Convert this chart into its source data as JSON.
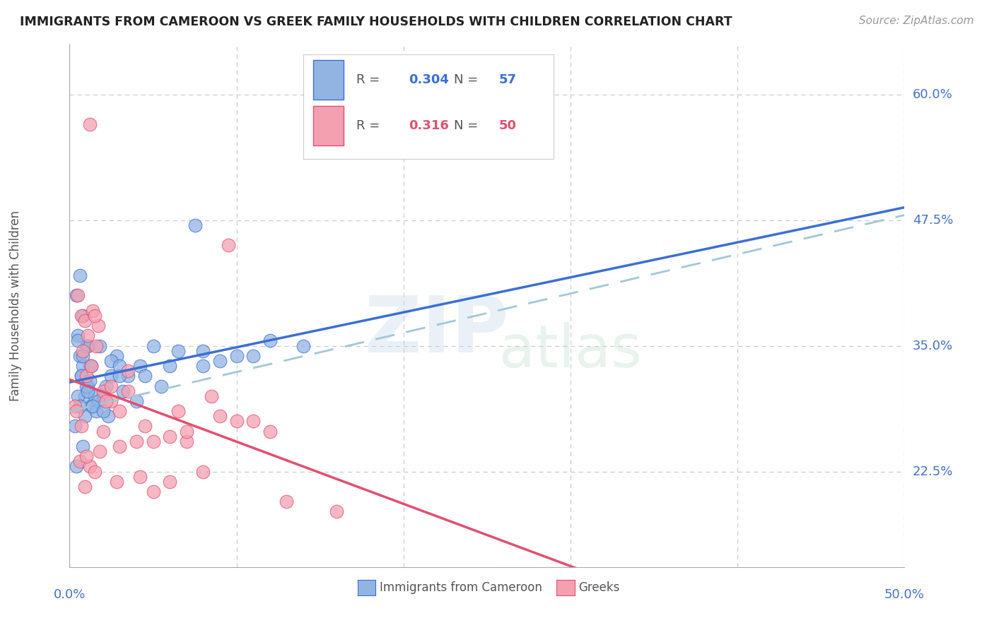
{
  "title": "IMMIGRANTS FROM CAMEROON VS GREEK FAMILY HOUSEHOLDS WITH CHILDREN CORRELATION CHART",
  "source": "Source: ZipAtlas.com",
  "ylabel": "Family Households with Children",
  "xlim": [
    0.0,
    50.0
  ],
  "ylim": [
    13.0,
    65.0
  ],
  "yticks": [
    22.5,
    35.0,
    47.5,
    60.0
  ],
  "xticks": [
    0.0,
    10.0,
    20.0,
    30.0,
    40.0,
    50.0
  ],
  "legend_blue_r": "0.304",
  "legend_blue_n": "57",
  "legend_pink_r": "0.316",
  "legend_pink_n": "50",
  "legend_label_blue": "Immigrants from Cameroon",
  "legend_label_pink": "Greeks",
  "blue_color": "#92b4e3",
  "blue_line_color": "#3b6fd4",
  "blue_dash_color": "#a0c8d8",
  "pink_color": "#f4a0b0",
  "pink_line_color": "#e05070",
  "title_color": "#222222",
  "axis_label_color": "#4472c4",
  "grid_color": "#cccccc",
  "blue_scatter_x": [
    0.6,
    0.8,
    1.0,
    1.2,
    0.5,
    0.7,
    0.9,
    1.1,
    1.3,
    0.4,
    0.6,
    0.8,
    1.0,
    1.5,
    1.8,
    2.2,
    2.5,
    2.8,
    3.5,
    4.2,
    5.0,
    6.5,
    8.0,
    10.0,
    14.0,
    0.3,
    0.5,
    0.7,
    0.9,
    1.1,
    1.3,
    1.6,
    2.0,
    2.5,
    3.0,
    0.4,
    0.6,
    0.8,
    1.2,
    1.7,
    2.3,
    3.2,
    4.5,
    6.0,
    7.5,
    9.0,
    11.0,
    0.5,
    0.8,
    1.1,
    1.4,
    2.0,
    3.0,
    4.0,
    5.5,
    8.0,
    12.0
  ],
  "blue_scatter_y": [
    42.0,
    38.0,
    35.0,
    33.0,
    36.0,
    32.0,
    30.0,
    31.0,
    29.0,
    40.0,
    34.0,
    33.0,
    31.0,
    30.0,
    35.0,
    31.0,
    32.0,
    34.0,
    32.0,
    33.0,
    35.0,
    34.5,
    33.0,
    34.0,
    35.0,
    27.0,
    30.0,
    32.0,
    28.0,
    35.0,
    33.0,
    28.5,
    30.0,
    33.5,
    32.0,
    23.0,
    29.0,
    25.0,
    31.5,
    29.5,
    28.0,
    30.5,
    32.0,
    33.0,
    47.0,
    33.5,
    34.0,
    35.5,
    34.0,
    30.5,
    29.0,
    28.5,
    33.0,
    29.5,
    31.0,
    34.5,
    35.5
  ],
  "pink_scatter_x": [
    0.3,
    0.5,
    0.7,
    0.9,
    1.1,
    1.4,
    1.7,
    2.0,
    2.5,
    3.0,
    3.5,
    4.0,
    5.0,
    6.0,
    7.0,
    8.5,
    10.0,
    12.0,
    1.2,
    1.5,
    2.0,
    2.5,
    3.5,
    5.0,
    7.0,
    9.0,
    0.8,
    1.0,
    1.3,
    1.6,
    2.2,
    3.0,
    4.5,
    6.5,
    9.5,
    13.0,
    0.6,
    0.9,
    1.2,
    1.8,
    2.8,
    4.2,
    6.0,
    8.0,
    11.0,
    16.0,
    0.4,
    0.7,
    1.0,
    1.5
  ],
  "pink_scatter_y": [
    29.0,
    40.0,
    38.0,
    37.5,
    36.0,
    38.5,
    37.0,
    26.5,
    29.5,
    25.0,
    30.5,
    25.5,
    20.5,
    26.0,
    25.5,
    30.0,
    27.5,
    26.5,
    57.0,
    38.0,
    30.5,
    31.0,
    32.5,
    25.5,
    26.5,
    28.0,
    34.5,
    32.0,
    33.0,
    35.0,
    29.5,
    28.5,
    27.0,
    28.5,
    45.0,
    19.5,
    23.5,
    21.0,
    23.0,
    24.5,
    21.5,
    22.0,
    21.5,
    22.5,
    27.5,
    18.5,
    28.5,
    27.0,
    24.0,
    22.5
  ]
}
